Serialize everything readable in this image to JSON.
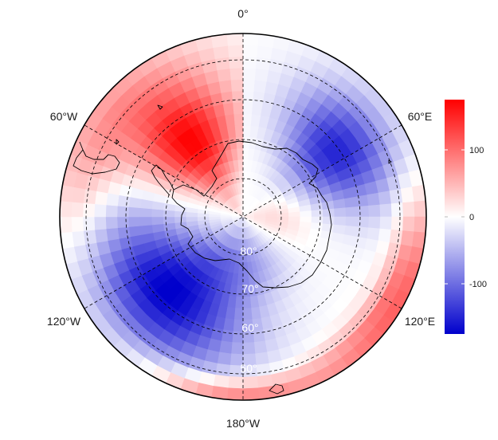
{
  "map": {
    "projection": "south-polar-stereographic",
    "longitude_labels": [
      "0°",
      "60°E",
      "120°E",
      "180°W",
      "120°W",
      "60°W"
    ],
    "latitude_labels": [
      "80°",
      "70°",
      "60°",
      "50°"
    ],
    "grid": "dashed",
    "coastlines": true
  },
  "colorbar": {
    "ticks": [
      "100",
      "0",
      "-100"
    ],
    "tick_values": [
      100,
      0,
      -100
    ],
    "range": [
      -175,
      175
    ],
    "colors": {
      "high": "#ff0000",
      "mid": "#ffffff",
      "low": "#0000cc"
    }
  },
  "colors": {
    "frame": "#000000",
    "grid": "#000000",
    "coast": "#000000"
  }
}
